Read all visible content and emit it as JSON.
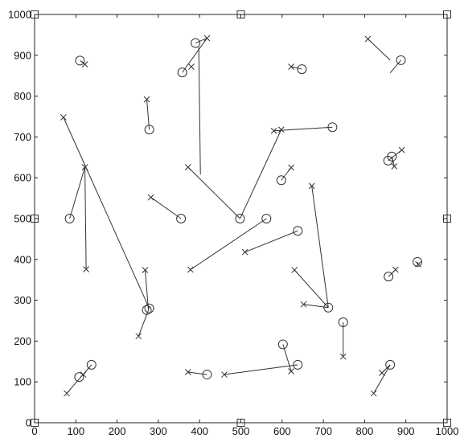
{
  "chart_data": {
    "type": "scatter",
    "title": "",
    "xlabel": "",
    "ylabel": "",
    "xlim": [
      0,
      1000
    ],
    "ylim": [
      0,
      1000
    ],
    "xticks": [
      0,
      100,
      200,
      300,
      400,
      500,
      600,
      700,
      800,
      900,
      1000
    ],
    "yticks": [
      0,
      100,
      200,
      300,
      400,
      500,
      600,
      700,
      800,
      900,
      1000
    ],
    "xtick_labels": [
      "0",
      "100",
      "200",
      "300",
      "400",
      "500",
      "600",
      "700",
      "800",
      "900",
      "1000"
    ],
    "ytick_labels": [
      "0",
      "100",
      "200",
      "300",
      "400",
      "500",
      "600",
      "700",
      "800",
      "900",
      "1000"
    ],
    "grid": false,
    "line_color": "#333333",
    "series": [
      {
        "marker": "square",
        "x": [
          0,
          500,
          1000,
          0,
          1000,
          0,
          500,
          1000
        ],
        "y": [
          0,
          0,
          0,
          500,
          500,
          1000,
          1000,
          1000
        ]
      },
      {
        "marker": "circle",
        "x": [
          110,
          390,
          358,
          648,
          278,
          722,
          857,
          866,
          598,
          85,
          498,
          355,
          562,
          638,
          278,
          272,
          858,
          928,
          712,
          748,
          602,
          638,
          108,
          138,
          418,
          862,
          888
        ],
        "y": [
          887,
          930,
          858,
          866,
          718,
          724,
          642,
          652,
          594,
          500,
          500,
          500,
          500,
          470,
          280,
          276,
          358,
          394,
          282,
          246,
          192,
          142,
          112,
          142,
          118,
          142,
          888
        ]
      },
      {
        "marker": "x",
        "x": [
          122,
          418,
          380,
          622,
          272,
          580,
          598,
          890,
          872,
          622,
          70,
          122,
          125,
          372,
          282,
          378,
          510,
          672,
          268,
          252,
          875,
          930,
          652,
          630,
          748,
          622,
          842,
          822,
          78,
          118,
          372,
          460,
          808
        ],
        "y": [
          878,
          942,
          872,
          872,
          792,
          715,
          718,
          668,
          628,
          625,
          748,
          626,
          376,
          626,
          552,
          375,
          418,
          580,
          374,
          212,
          375,
          388,
          290,
          374,
          162,
          126,
          122,
          72,
          72,
          118,
          124,
          118,
          940
        ]
      }
    ],
    "segments": [
      {
        "from": [
          110,
          887
        ],
        "to": [
          122,
          878
        ]
      },
      {
        "from": [
          390,
          930
        ],
        "to": [
          418,
          942
        ]
      },
      {
        "from": [
          358,
          858
        ],
        "to": [
          418,
          942
        ]
      },
      {
        "from": [
          398,
          920
        ],
        "to": [
          402,
          608
        ]
      },
      {
        "from": [
          648,
          866
        ],
        "to": [
          622,
          872
        ]
      },
      {
        "from": [
          808,
          940
        ],
        "to": [
          862,
          888
        ]
      },
      {
        "from": [
          888,
          888
        ],
        "to": [
          862,
          857
        ]
      },
      {
        "from": [
          278,
          718
        ],
        "to": [
          272,
          792
        ]
      },
      {
        "from": [
          722,
          724
        ],
        "to": [
          580,
          715
        ]
      },
      {
        "from": [
          598,
          718
        ],
        "to": [
          498,
          500
        ]
      },
      {
        "from": [
          857,
          642
        ],
        "to": [
          890,
          668
        ]
      },
      {
        "from": [
          866,
          652
        ],
        "to": [
          872,
          628
        ]
      },
      {
        "from": [
          598,
          594
        ],
        "to": [
          622,
          625
        ]
      },
      {
        "from": [
          70,
          748
        ],
        "to": [
          278,
          280
        ]
      },
      {
        "from": [
          85,
          500
        ],
        "to": [
          122,
          626
        ]
      },
      {
        "from": [
          122,
          626
        ],
        "to": [
          125,
          376
        ]
      },
      {
        "from": [
          372,
          626
        ],
        "to": [
          498,
          500
        ]
      },
      {
        "from": [
          282,
          552
        ],
        "to": [
          355,
          500
        ]
      },
      {
        "from": [
          562,
          500
        ],
        "to": [
          378,
          375
        ]
      },
      {
        "from": [
          638,
          470
        ],
        "to": [
          510,
          418
        ]
      },
      {
        "from": [
          672,
          580
        ],
        "to": [
          712,
          282
        ]
      },
      {
        "from": [
          630,
          374
        ],
        "to": [
          712,
          282
        ]
      },
      {
        "from": [
          652,
          290
        ],
        "to": [
          712,
          282
        ]
      },
      {
        "from": [
          268,
          374
        ],
        "to": [
          276,
          276
        ]
      },
      {
        "from": [
          276,
          276
        ],
        "to": [
          252,
          212
        ]
      },
      {
        "from": [
          858,
          358
        ],
        "to": [
          875,
          375
        ]
      },
      {
        "from": [
          928,
          394
        ],
        "to": [
          930,
          388
        ]
      },
      {
        "from": [
          748,
          246
        ],
        "to": [
          748,
          162
        ]
      },
      {
        "from": [
          602,
          192
        ],
        "to": [
          622,
          126
        ]
      },
      {
        "from": [
          638,
          142
        ],
        "to": [
          460,
          118
        ]
      },
      {
        "from": [
          418,
          118
        ],
        "to": [
          372,
          124
        ]
      },
      {
        "from": [
          862,
          142
        ],
        "to": [
          822,
          72
        ]
      },
      {
        "from": [
          862,
          142
        ],
        "to": [
          842,
          122
        ]
      },
      {
        "from": [
          138,
          142
        ],
        "to": [
          78,
          72
        ]
      }
    ]
  }
}
